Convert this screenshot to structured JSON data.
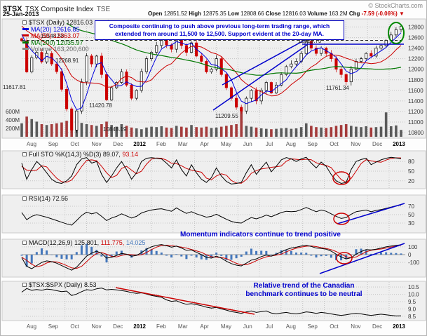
{
  "meta": {
    "copyright": "© StockCharts.com"
  },
  "header": {
    "symbol": "$TSX",
    "title": "TSX Composite Index",
    "exchange": "TSE",
    "date": "25-Jan-2013",
    "quote": {
      "open_l": "Open",
      "open": "12851.52",
      "high_l": "High",
      "high": "12875.35",
      "low_l": "Low",
      "low": "12808.66",
      "close_l": "Close",
      "close": "12816.03",
      "vol_l": "Volume",
      "vol": "163.2M",
      "chg_l": "Chg",
      "chg": "-7.59 (-0.06%)",
      "arrow": "▼"
    }
  },
  "legends": {
    "main": {
      "name": "$TSX (Daily)",
      "close": "12816.03",
      "ma20_l": "MA(20)",
      "ma20": "12616.85",
      "ma50_l": "MA(50)",
      "ma50": "12363.07",
      "ma200_l": "MA(200)",
      "ma200": "12035.97",
      "vol_l": "Volume",
      "vol": "163,200,600"
    },
    "sto": {
      "label": "Full STO %K(14,3) %D(3)",
      "k": "89.07,",
      "d": "93.14"
    },
    "rsi": {
      "label": "RSI(14)",
      "value": "72.56"
    },
    "macd": {
      "label": "MACD(12,26,9)",
      "m": "125.801,",
      "s": "111.775,",
      "h": "14.025"
    },
    "ratio": {
      "label": "$TSX:$SPX (Daily)",
      "value": "8.53"
    }
  },
  "annotations": {
    "main": "Composite continuing to push above previous long-term trading range, which extended from around 11,500 to 12,500.  Support evident at the 20-day MA.",
    "momentum": "Momentum indicators continue to trend positive",
    "relative": "Relative trend of the Canadian benchmark continues to be neutral"
  },
  "price_labels": [
    "12548.58",
    "12268.91",
    "11617.81",
    "11420.78",
    "10848.19",
    "11209.55",
    "12529.73",
    "11761.34"
  ],
  "colors": {
    "ma20": "#0000DD",
    "ma50": "#CC0000",
    "ma200": "#007700",
    "signal": "#CC0000",
    "histogram": "#4477BB",
    "annotation": "#0000CC",
    "circle_green": "#008800",
    "circle_red": "#CC0000",
    "down_red": "#CC0000",
    "volume_legend": "#666666"
  },
  "chart_data": {
    "type": "multi-panel-financial",
    "timeframe": "Aug 2011 – Jan 2013 (daily chart, values sampled weekly)",
    "x_months": [
      "Aug",
      "Sep",
      "Oct",
      "Nov",
      "Dec",
      "2012",
      "Feb",
      "Mar",
      "Apr",
      "May",
      "Jun",
      "Jul",
      "Aug",
      "Sep",
      "Oct",
      "Nov",
      "Dec",
      "2013"
    ],
    "price": {
      "type": "candlestick",
      "ylim": [
        10800,
        12900
      ],
      "yticks": [
        12800,
        12600,
        12400,
        12200,
        12000,
        11800,
        11600,
        11400,
        11200,
        11000,
        10800
      ],
      "last_close": 12816.03,
      "ma20_last": 12616.85,
      "ma50_last": 12363.07,
      "ma200_last": 12035.97,
      "key_levels": {
        "range_top": 12548.58,
        "range_bottom_approx": 11500
      },
      "weekly_close": [
        12540,
        11950,
        12220,
        12320,
        12140,
        12300,
        12100,
        11955,
        11620,
        11250,
        10848,
        11210,
        11760,
        12252,
        12100,
        12250,
        11900,
        11420,
        11650,
        11750,
        11950,
        11700,
        11450,
        11600,
        11955,
        12200,
        12320,
        12450,
        12550,
        12460,
        12380,
        12700,
        12450,
        12320,
        12500,
        12250,
        12150,
        11950,
        12000,
        12200,
        11900,
        11650,
        11450,
        11280,
        11209,
        11450,
        11600,
        11400,
        11600,
        11750,
        11550,
        11700,
        11900,
        12050,
        12100,
        12150,
        12300,
        12529,
        12400,
        12300,
        12400,
        12300,
        12200,
        12000,
        11900,
        11761,
        12000,
        12150,
        12200,
        12300,
        12250,
        12400,
        12450,
        12550,
        12650,
        12750,
        12816
      ]
    },
    "volume": {
      "type": "bar",
      "unit": "millions",
      "last": 163.2,
      "yticks": [
        "600M",
        "400M",
        "200M"
      ],
      "values": [
        320,
        480,
        420,
        360,
        300,
        280,
        300,
        320,
        340,
        380,
        520,
        400,
        330,
        300,
        280,
        260,
        300,
        360,
        280,
        240,
        300,
        260,
        220,
        200,
        180,
        220,
        240,
        230,
        250,
        220,
        210,
        260,
        240,
        220,
        280,
        230,
        220,
        240,
        210,
        220,
        240,
        260,
        280,
        300,
        620,
        260,
        240,
        220,
        200,
        190,
        180,
        190,
        200,
        210,
        190,
        200,
        230,
        320,
        260,
        230,
        220,
        210,
        230,
        260,
        280,
        300,
        260,
        240,
        230,
        250,
        220,
        230,
        240,
        580,
        250,
        270,
        163
      ]
    },
    "full_sto": {
      "type": "line",
      "params": "%K(14,3) %D(3)",
      "last_k": 89.07,
      "last_d": 93.14,
      "ylim": [
        0,
        100
      ],
      "yticks": [
        80,
        50,
        20
      ],
      "k_values": [
        75,
        25,
        55,
        80,
        65,
        45,
        25,
        15,
        12,
        20,
        35,
        70,
        88,
        92,
        75,
        80,
        40,
        15,
        35,
        60,
        80,
        55,
        25,
        45,
        80,
        90,
        92,
        90,
        88,
        75,
        60,
        85,
        55,
        35,
        70,
        45,
        25,
        15,
        30,
        60,
        35,
        18,
        10,
        12,
        15,
        45,
        70,
        40,
        60,
        78,
        48,
        65,
        85,
        92,
        88,
        80,
        88,
        93,
        75,
        60,
        78,
        65,
        40,
        20,
        12,
        15,
        55,
        80,
        86,
        90,
        70,
        78,
        85,
        90,
        93,
        91,
        89
      ]
    },
    "rsi": {
      "type": "line",
      "params": "RSI(14)",
      "last": 72.56,
      "ylim": [
        10,
        90
      ],
      "yticks": [
        70,
        50,
        30
      ],
      "values": [
        55,
        38,
        46,
        50,
        47,
        44,
        40,
        36,
        32,
        28,
        25,
        36,
        48,
        56,
        52,
        55,
        46,
        36,
        42,
        46,
        52,
        47,
        42,
        46,
        54,
        58,
        61,
        63,
        64,
        61,
        58,
        66,
        59,
        53,
        57,
        52,
        48,
        44,
        46,
        51,
        45,
        39,
        34,
        31,
        30,
        37,
        43,
        40,
        44,
        49,
        45,
        50,
        55,
        58,
        57,
        58,
        62,
        67,
        62,
        57,
        61,
        58,
        52,
        46,
        41,
        43,
        51,
        57,
        59,
        61,
        57,
        60,
        62,
        65,
        68,
        71,
        73
      ]
    },
    "macd": {
      "type": "line+histogram",
      "params": "MACD(12,26,9)",
      "last_macd": 125.801,
      "last_signal": 111.775,
      "last_hist": 14.025,
      "yticks": [
        100,
        0,
        -100
      ],
      "values": [
        -40,
        -150,
        -180,
        -140,
        -100,
        -80,
        -90,
        -110,
        -140,
        -170,
        -200,
        -160,
        -90,
        -20,
        20,
        45,
        15,
        -45,
        -35,
        -10,
        15,
        5,
        -20,
        -10,
        25,
        70,
        100,
        120,
        130,
        115,
        95,
        110,
        85,
        55,
        60,
        30,
        0,
        -35,
        -45,
        -20,
        -45,
        -85,
        -115,
        -135,
        -145,
        -110,
        -70,
        -55,
        -25,
        -5,
        -20,
        5,
        35,
        65,
        85,
        95,
        110,
        120,
        105,
        85,
        80,
        70,
        45,
        5,
        -30,
        -55,
        -40,
        5,
        40,
        65,
        60,
        70,
        85,
        100,
        110,
        120,
        126
      ]
    },
    "ratio": {
      "type": "line",
      "name": "$TSX:$SPX",
      "last": 8.53,
      "yticks": [
        "10.5",
        "10.0",
        "9.5",
        "9.0",
        "8.5"
      ],
      "values": [
        10.15,
        10.4,
        10.28,
        10.33,
        10.28,
        10.36,
        10.32,
        10.25,
        10.18,
        10.22,
        9.92,
        10.02,
        10.18,
        10.32,
        10.28,
        10.38,
        10.43,
        10.3,
        10.34,
        10.3,
        10.26,
        10.2,
        10.12,
        10.06,
        10.1,
        10.02,
        9.92,
        9.86,
        9.8,
        9.62,
        9.52,
        9.56,
        9.42,
        9.32,
        9.36,
        9.3,
        9.22,
        9.12,
        9.06,
        9.1,
        9.0,
        8.92,
        8.82,
        8.76,
        8.7,
        8.8,
        8.86,
        8.76,
        8.82,
        8.86,
        8.72,
        8.66,
        8.72,
        8.76,
        8.7,
        8.66,
        8.72,
        8.8,
        8.76,
        8.7,
        8.76,
        8.72,
        8.66,
        8.6,
        8.56,
        8.6,
        8.66,
        8.7,
        8.66,
        8.6,
        8.56,
        8.6,
        8.64,
        8.6,
        8.56,
        8.52,
        8.53
      ]
    }
  }
}
